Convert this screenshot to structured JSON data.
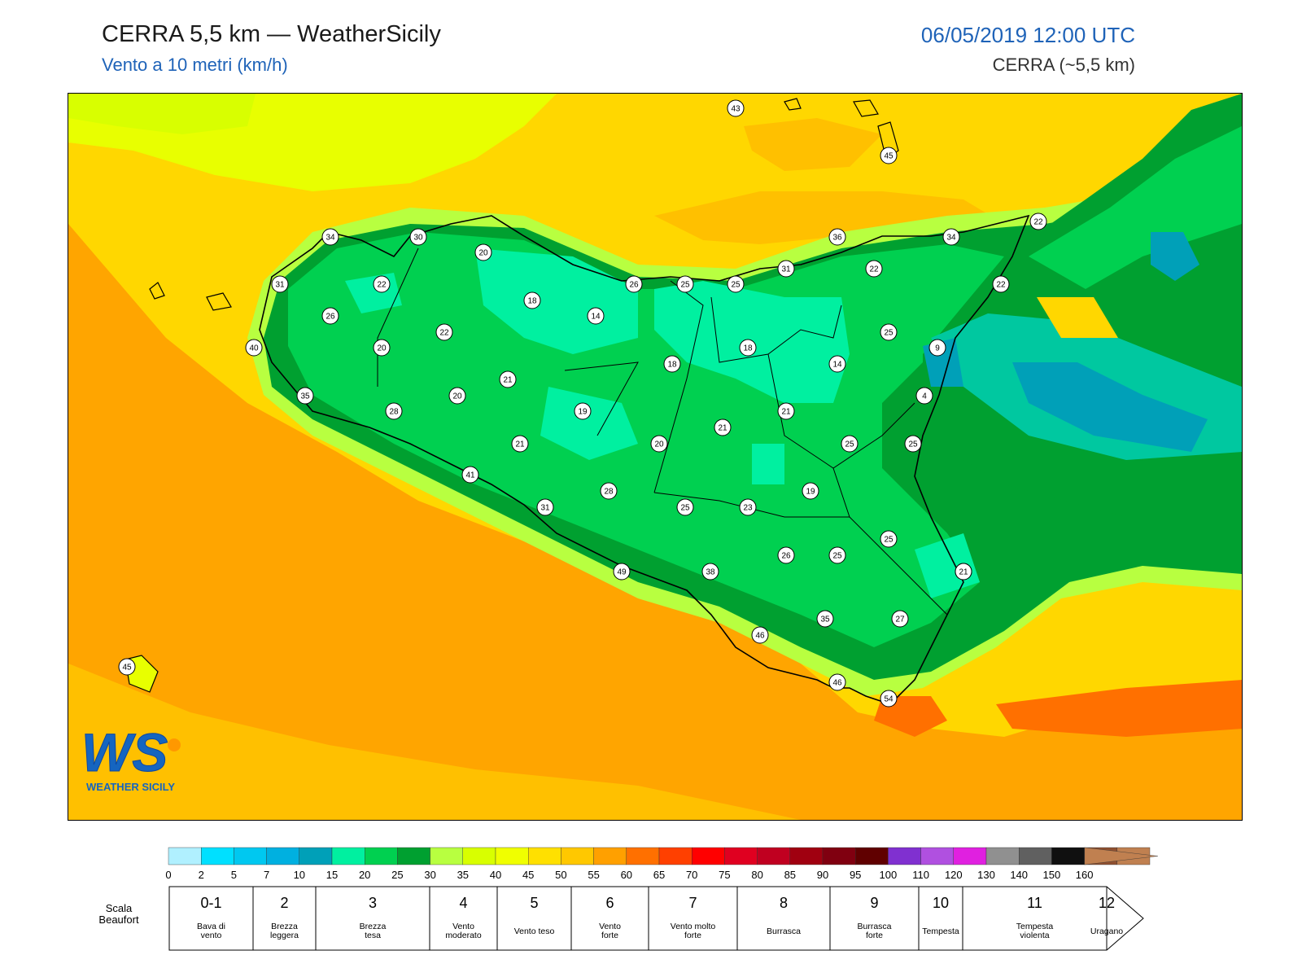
{
  "header": {
    "title": "CERRA 5,5 km — WeatherSicily",
    "subtitle": "Vento a 10 metri (km/h)",
    "datetime": "06/05/2019 12:00 UTC",
    "model": "CERRA (~5,5 km)"
  },
  "logo": {
    "text_ws": "WS",
    "text_name": "WEATHER SICILY"
  },
  "colorbar": {
    "ticks": [
      "0",
      "2",
      "5",
      "7",
      "10",
      "15",
      "20",
      "25",
      "30",
      "35",
      "40",
      "45",
      "50",
      "55",
      "60",
      "65",
      "70",
      "75",
      "80",
      "85",
      "90",
      "95",
      "100",
      "110",
      "120",
      "130",
      "140",
      "150",
      "160"
    ],
    "colors": [
      "#b0f0ff",
      "#00e0ff",
      "#00c8f0",
      "#00b0e0",
      "#00a0b8",
      "#00f0a0",
      "#00d050",
      "#00a030",
      "#b8ff40",
      "#d8ff00",
      "#f0ff00",
      "#ffe000",
      "#ffc800",
      "#ffa000",
      "#ff7000",
      "#ff4000",
      "#ff0000",
      "#e00020",
      "#c00020",
      "#a00010",
      "#800010",
      "#600000",
      "#8030d0",
      "#b050e0",
      "#e020e0",
      "#909090",
      "#606060",
      "#101010",
      "#905030",
      "#c08050"
    ]
  },
  "beaufort": {
    "label": "Scala\nBeaufort",
    "classes": [
      {
        "num": "0-1",
        "name": "Bava di\nvento"
      },
      {
        "num": "2",
        "name": "Brezza\nleggera"
      },
      {
        "num": "3",
        "name": "Brezza\ntesa"
      },
      {
        "num": "4",
        "name": "Vento\nmoderato"
      },
      {
        "num": "5",
        "name": "Vento teso"
      },
      {
        "num": "6",
        "name": "Vento\nforte"
      },
      {
        "num": "7",
        "name": "Vento molto\nforte"
      },
      {
        "num": "8",
        "name": "Burrasca"
      },
      {
        "num": "9",
        "name": "Burrasca\nforte"
      },
      {
        "num": "10",
        "name": "Tempesta"
      },
      {
        "num": "11",
        "name": "Tempesta\nviolenta"
      },
      {
        "num": "12",
        "name": "Uragano"
      }
    ]
  },
  "stations": [
    {
      "v": "43"
    },
    {
      "v": "45"
    },
    {
      "v": "34"
    },
    {
      "v": "30"
    },
    {
      "v": "20"
    },
    {
      "v": "31"
    },
    {
      "v": "22"
    },
    {
      "v": "26"
    },
    {
      "v": "18"
    },
    {
      "v": "14"
    },
    {
      "v": "26"
    },
    {
      "v": "25"
    },
    {
      "v": "25"
    },
    {
      "v": "31"
    },
    {
      "v": "36"
    },
    {
      "v": "22"
    },
    {
      "v": "34"
    },
    {
      "v": "22"
    },
    {
      "v": "22"
    },
    {
      "v": "40"
    },
    {
      "v": "20"
    },
    {
      "v": "22"
    },
    {
      "v": "21"
    },
    {
      "v": "18"
    },
    {
      "v": "18"
    },
    {
      "v": "14"
    },
    {
      "v": "25"
    },
    {
      "v": "9"
    },
    {
      "v": "4"
    },
    {
      "v": "35"
    },
    {
      "v": "20"
    },
    {
      "v": "28"
    },
    {
      "v": "19"
    },
    {
      "v": "21"
    },
    {
      "v": "21"
    },
    {
      "v": "20"
    },
    {
      "v": "21"
    },
    {
      "v": "25"
    },
    {
      "v": "25"
    },
    {
      "v": "41"
    },
    {
      "v": "31"
    },
    {
      "v": "28"
    },
    {
      "v": "25"
    },
    {
      "v": "23"
    },
    {
      "v": "19"
    },
    {
      "v": "25"
    },
    {
      "v": "49"
    },
    {
      "v": "38"
    },
    {
      "v": "26"
    },
    {
      "v": "25"
    },
    {
      "v": "21"
    },
    {
      "v": "35"
    },
    {
      "v": "27"
    },
    {
      "v": "46"
    },
    {
      "v": "45"
    },
    {
      "v": "46"
    },
    {
      "v": "54"
    },
    {
      "v": "21"
    }
  ]
}
